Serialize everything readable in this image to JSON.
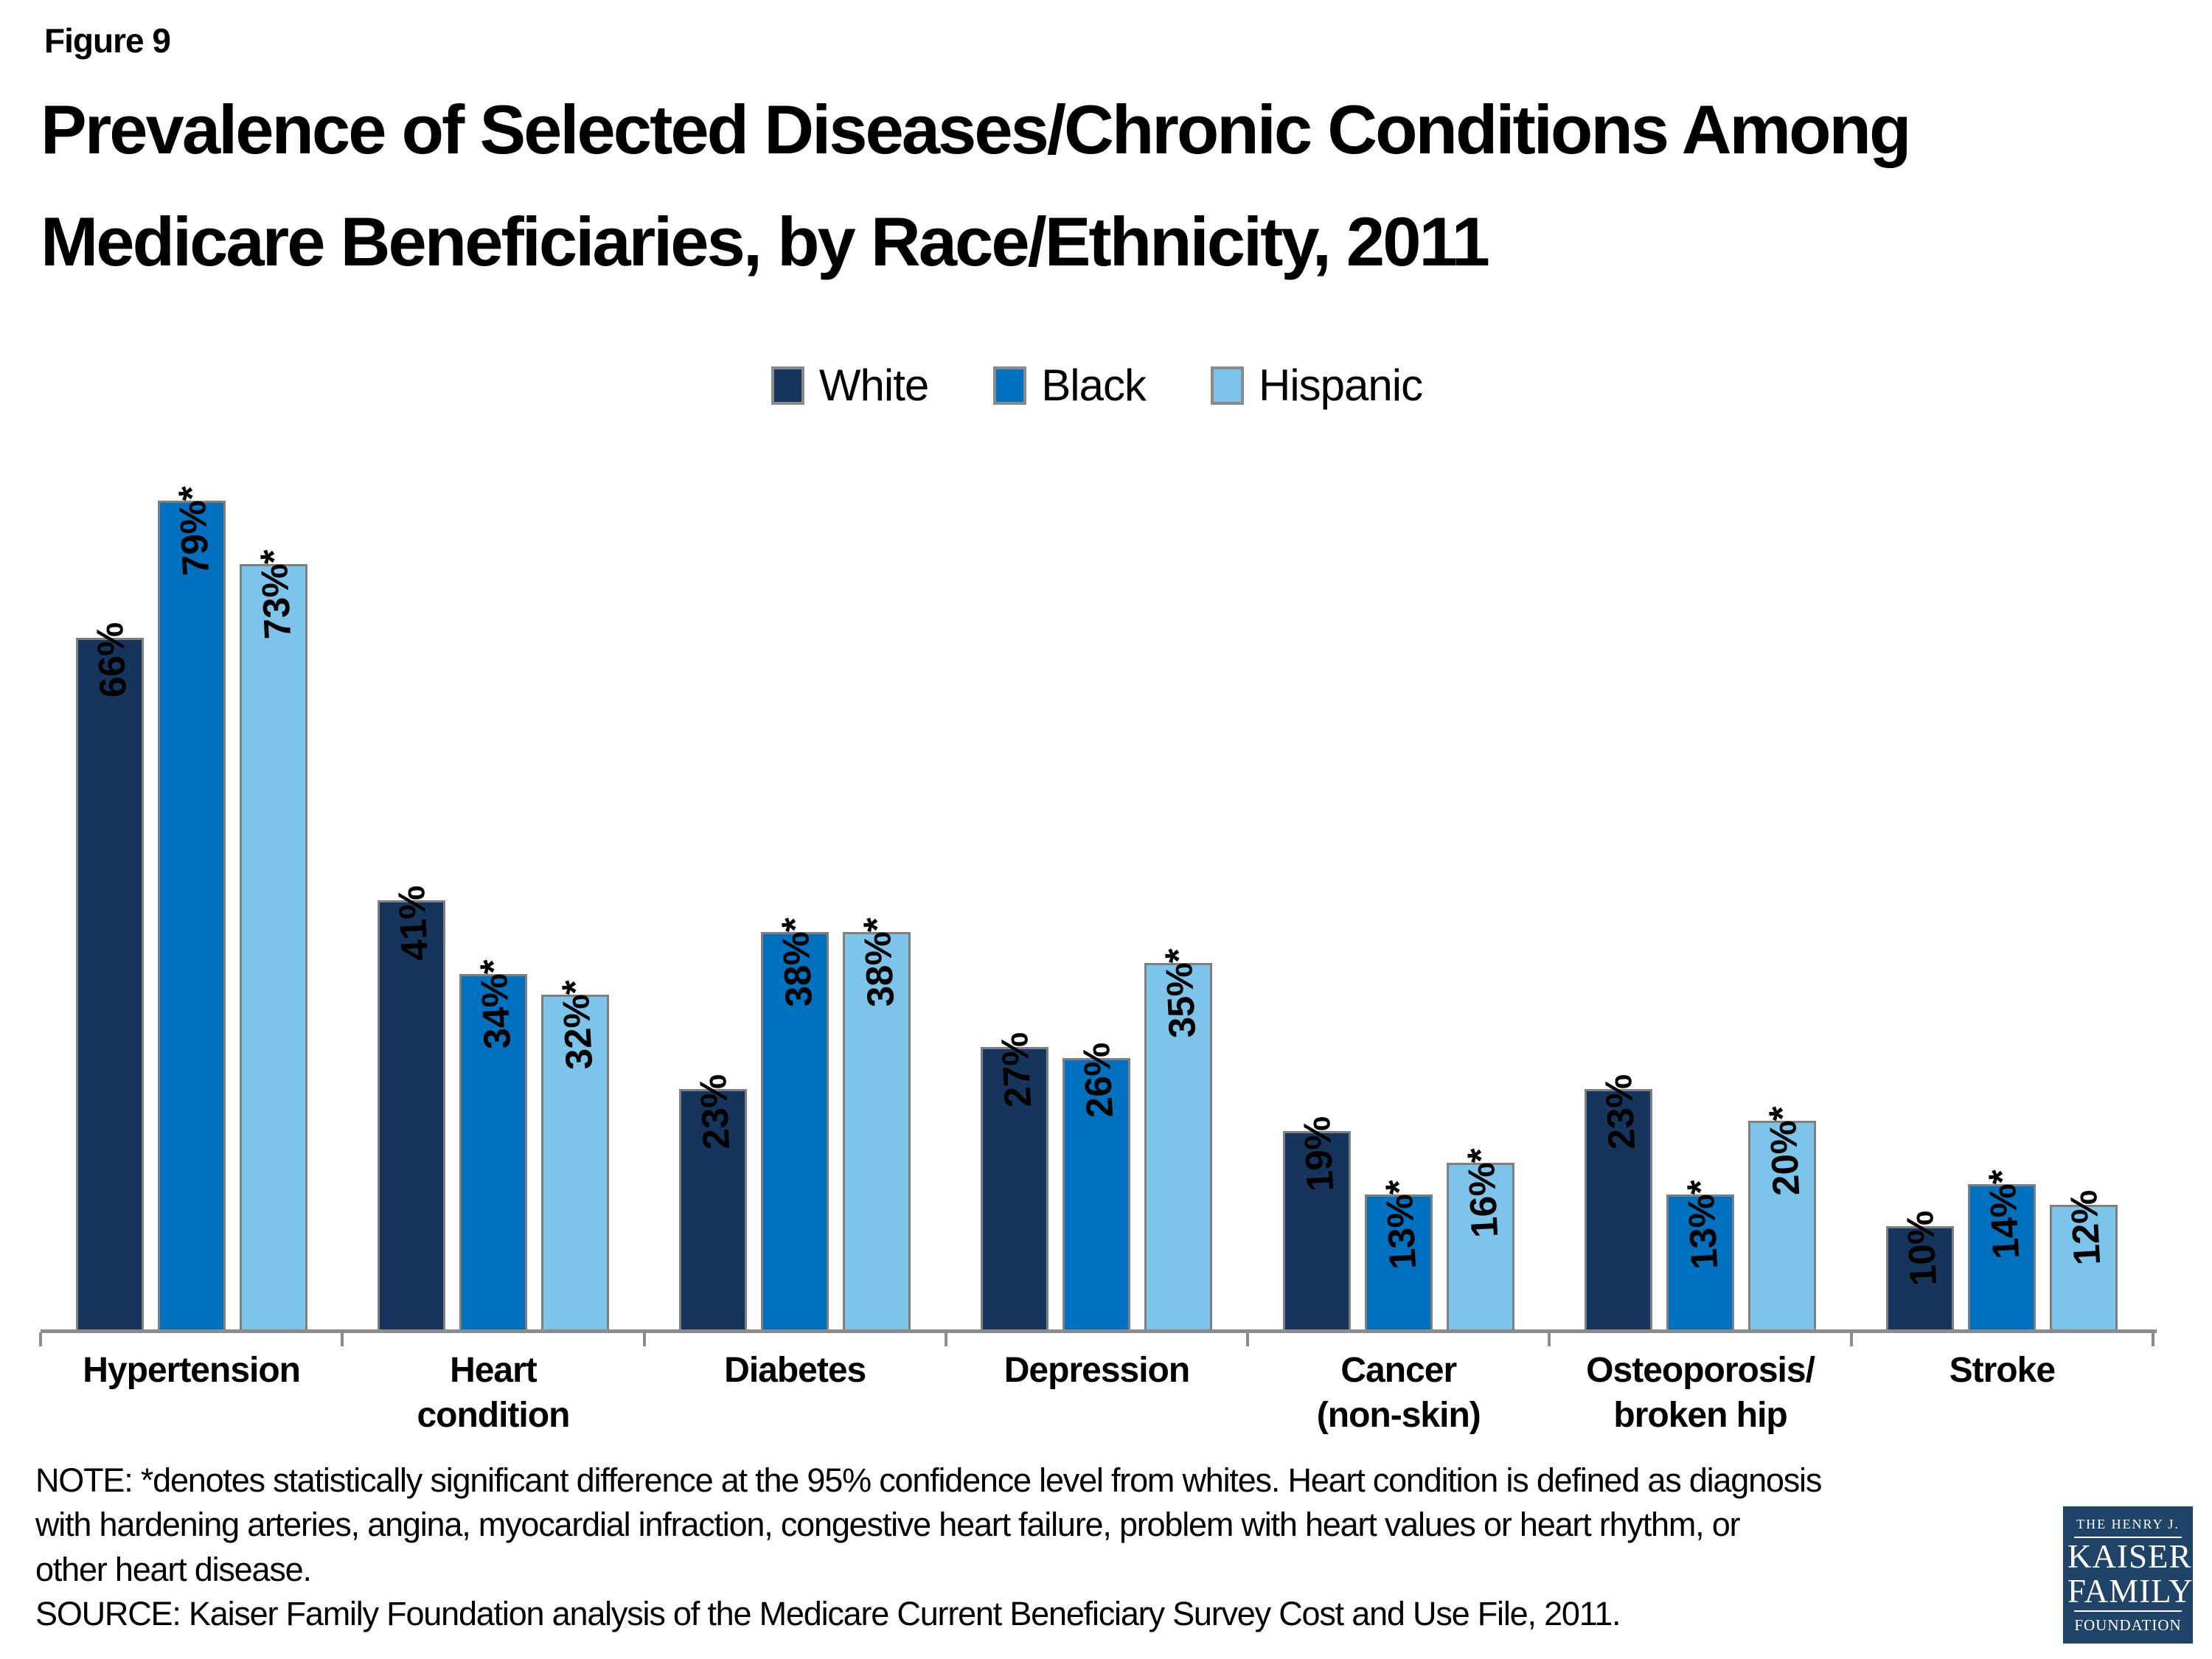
{
  "figure_label": "Figure 9",
  "title": {
    "line1": "Prevalence of Selected Diseases/Chronic Conditions Among",
    "line2": "Medicare Beneficiaries, by Race/Ethnicity, 2011"
  },
  "legend": {
    "items": [
      {
        "label": "White"
      },
      {
        "label": "Black"
      },
      {
        "label": "Hispanic"
      }
    ]
  },
  "chart_data": {
    "type": "bar",
    "title": "Prevalence of Selected Diseases/Chronic Conditions Among Medicare Beneficiaries, by Race/Ethnicity, 2011",
    "categories": [
      "Hypertension",
      "Heart\ncondition",
      "Diabetes",
      "Depression",
      "Cancer\n(non-skin)",
      "Osteoporosis/\nbroken hip",
      "Stroke"
    ],
    "series": [
      {
        "name": "White",
        "color": "#16355c",
        "values": [
          66,
          41,
          23,
          27,
          19,
          23,
          10
        ],
        "labels": [
          "66%",
          "41%",
          "23%",
          "27%",
          "19%",
          "23%",
          "10%"
        ]
      },
      {
        "name": "Black",
        "color": "#0071bf",
        "values": [
          79,
          34,
          38,
          26,
          13,
          13,
          14
        ],
        "labels": [
          "79%*",
          "34%*",
          "38%*",
          "26%",
          "13%*",
          "13%*",
          "14%*"
        ]
      },
      {
        "name": "Hispanic",
        "color": "#7dc4eb",
        "values": [
          73,
          32,
          38,
          35,
          16,
          20,
          12
        ],
        "labels": [
          "73%*",
          "32%*",
          "38%*",
          "35%*",
          "16%*",
          "20%*",
          "12%"
        ]
      }
    ],
    "xlabel": "",
    "ylabel": "",
    "ylim": [
      0,
      80
    ],
    "grid": false,
    "legend_position": "top",
    "value_label_rotation": "vertical, read bottom-to-top"
  },
  "note": {
    "line1": "NOTE: *denotes statistically significant difference at the 95% confidence level from whites. Heart condition is defined as diagnosis",
    "line2": "with hardening arteries, angina, myocardial infraction, congestive heart failure, problem with heart values or heart rhythm, or",
    "line3": "other heart disease."
  },
  "source": "SOURCE: Kaiser Family Foundation analysis of the Medicare Current Beneficiary Survey Cost and Use File, 2011.",
  "logo": {
    "top": "THE HENRY J.",
    "name1": "KAISER",
    "name2": "FAMILY",
    "bottom": "FOUNDATION",
    "background": "#1f4468"
  },
  "colors": {
    "axis": "#8c8c8c",
    "bar_border": "#7f7f7f",
    "text": "#000000",
    "background": "#ffffff"
  }
}
